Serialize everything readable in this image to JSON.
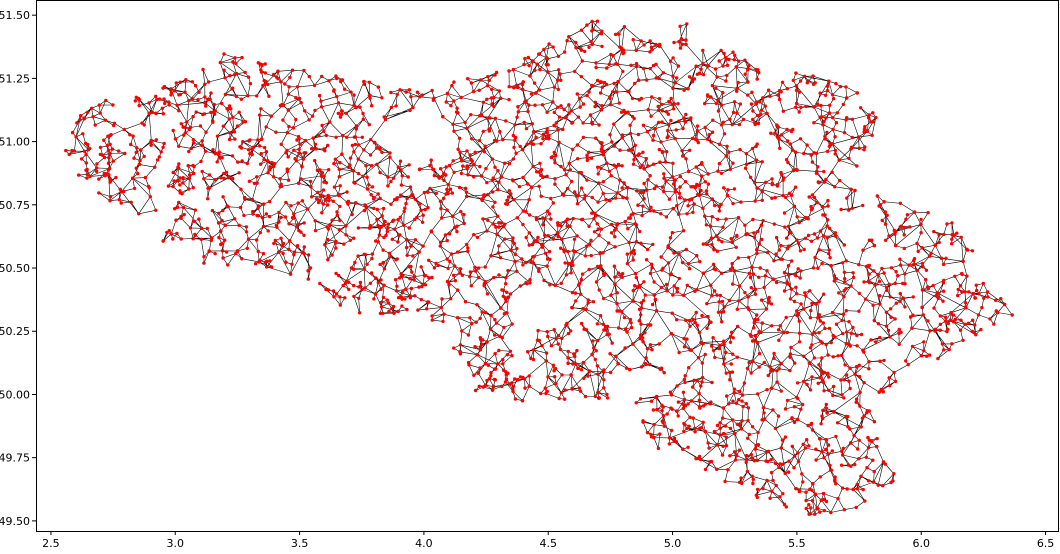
{
  "chart_data": {
    "type": "scatter",
    "title": "",
    "xlabel": "",
    "ylabel": "",
    "xlim": [
      2.44,
      6.55
    ],
    "ylim": [
      49.46,
      51.56
    ],
    "xticks": [
      "2.5",
      "3.0",
      "3.5",
      "4.0",
      "4.5",
      "5.0",
      "5.5",
      "6.0",
      "6.5"
    ],
    "xtick_values": [
      2.5,
      3.0,
      3.5,
      4.0,
      4.5,
      5.0,
      5.5,
      6.0,
      6.5
    ],
    "yticks": [
      "49.50",
      "49.75",
      "50.00",
      "50.25",
      "50.50",
      "50.75",
      "51.00",
      "51.25",
      "51.50"
    ],
    "ytick_values": [
      49.5,
      49.75,
      50.0,
      50.25,
      50.5,
      50.75,
      51.0,
      51.25,
      51.5
    ],
    "grid": false,
    "node_color": "#ff0000",
    "edge_color": "#000000",
    "outline": [
      [
        2.56,
        51.08
      ],
      [
        2.7,
        51.16
      ],
      [
        2.9,
        51.2
      ],
      [
        3.1,
        51.3
      ],
      [
        3.22,
        51.36
      ],
      [
        3.4,
        51.3
      ],
      [
        3.55,
        51.28
      ],
      [
        3.8,
        51.25
      ],
      [
        4.0,
        51.2
      ],
      [
        4.25,
        51.28
      ],
      [
        4.4,
        51.35
      ],
      [
        4.55,
        51.42
      ],
      [
        4.7,
        51.49
      ],
      [
        4.85,
        51.44
      ],
      [
        5.05,
        51.47
      ],
      [
        5.25,
        51.35
      ],
      [
        5.45,
        51.28
      ],
      [
        5.6,
        51.26
      ],
      [
        5.85,
        51.15
      ],
      [
        5.8,
        51.0
      ],
      [
        5.7,
        50.82
      ],
      [
        5.95,
        50.75
      ],
      [
        6.1,
        50.7
      ],
      [
        6.25,
        50.6
      ],
      [
        6.15,
        50.5
      ],
      [
        6.3,
        50.42
      ],
      [
        6.4,
        50.33
      ],
      [
        6.25,
        50.25
      ],
      [
        6.1,
        50.15
      ],
      [
        5.95,
        50.1
      ],
      [
        5.8,
        49.95
      ],
      [
        5.85,
        49.75
      ],
      [
        5.92,
        49.66
      ],
      [
        5.75,
        49.55
      ],
      [
        5.5,
        49.51
      ],
      [
        5.25,
        49.62
      ],
      [
        5.1,
        49.72
      ],
      [
        4.9,
        49.8
      ],
      [
        4.85,
        49.98
      ],
      [
        4.55,
        49.97
      ],
      [
        4.45,
        49.95
      ],
      [
        4.2,
        49.97
      ],
      [
        4.15,
        50.15
      ],
      [
        4.0,
        50.3
      ],
      [
        3.7,
        50.32
      ],
      [
        3.55,
        50.45
      ],
      [
        3.35,
        50.5
      ],
      [
        3.1,
        50.52
      ],
      [
        2.95,
        50.6
      ],
      [
        2.95,
        50.7
      ],
      [
        2.8,
        50.72
      ],
      [
        2.62,
        50.82
      ],
      [
        2.55,
        50.95
      ]
    ],
    "holes": [
      [
        [
          3.85,
          51.12
        ],
        [
          4.05,
          51.1
        ],
        [
          4.15,
          50.98
        ],
        [
          3.98,
          50.92
        ],
        [
          3.84,
          51.0
        ]
      ],
      [
        [
          4.35,
          50.4
        ],
        [
          4.55,
          50.42
        ],
        [
          4.62,
          50.3
        ],
        [
          4.48,
          50.25
        ],
        [
          4.36,
          50.3
        ]
      ],
      [
        [
          5.62,
          50.72
        ],
        [
          5.82,
          50.74
        ],
        [
          5.85,
          50.62
        ],
        [
          5.68,
          50.6
        ]
      ],
      [
        [
          4.72,
          50.08
        ],
        [
          4.95,
          50.1
        ],
        [
          4.98,
          50.0
        ],
        [
          4.76,
          49.99
        ]
      ]
    ]
  }
}
